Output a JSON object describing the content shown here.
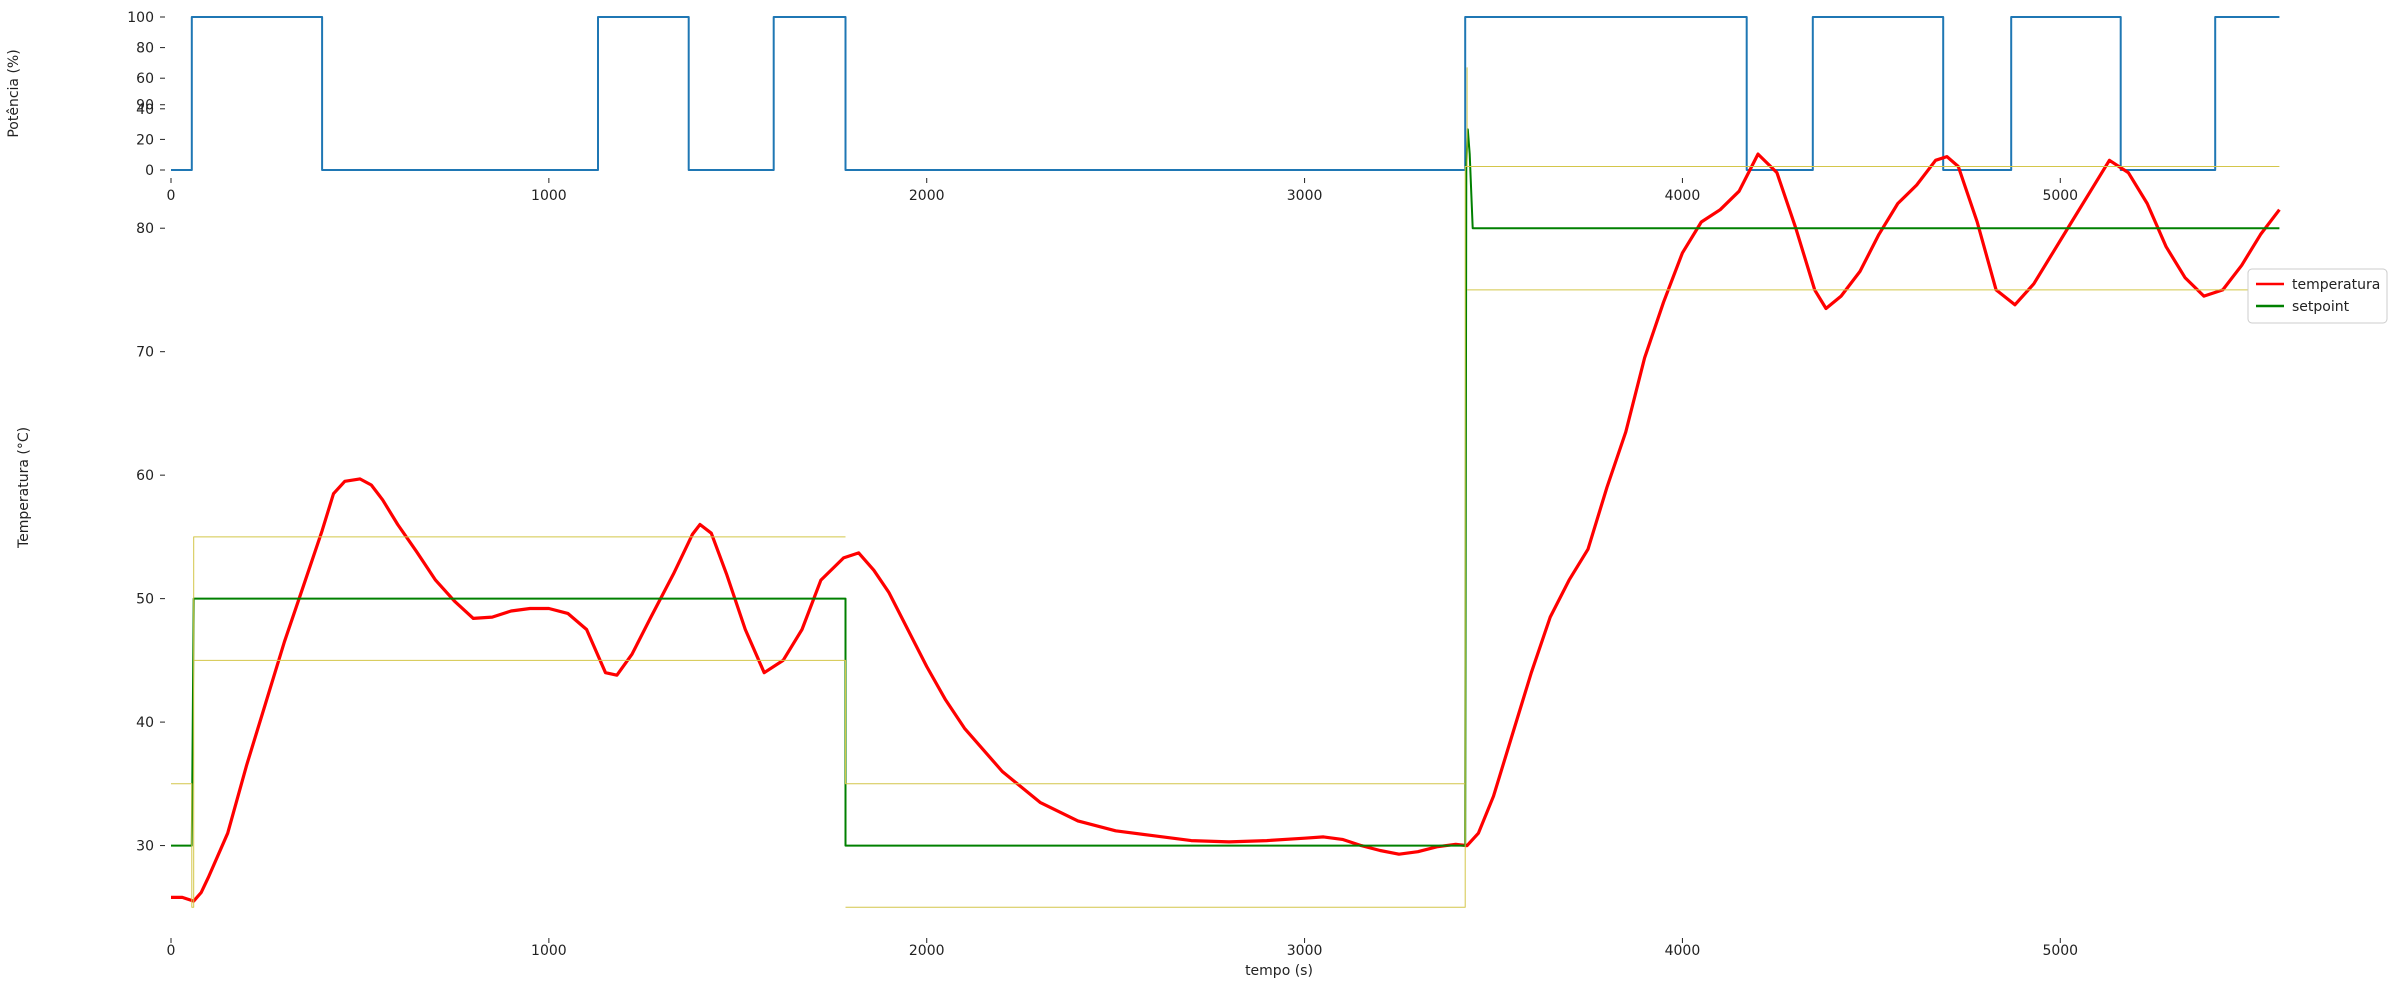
{
  "chart_data": [
    {
      "type": "line",
      "name": "power-chart",
      "ylabel": "Potência (%)",
      "xlabel": "",
      "xlim": [
        0,
        5600
      ],
      "ylim": [
        0,
        100
      ],
      "xticks": [
        "0",
        "1000",
        "2000",
        "3000",
        "4000",
        "5000"
      ],
      "xtick_values": [
        0,
        1000,
        2000,
        3000,
        4000,
        5000
      ],
      "yticks": [
        "0",
        "20",
        "40",
        "60",
        "80",
        "100"
      ],
      "ytick_values": [
        0,
        20,
        40,
        60,
        80,
        100
      ],
      "grid": false,
      "series": [
        {
          "color": "#1f77b4",
          "step": true,
          "x": [
            0,
            55,
            55,
            400,
            400,
            1130,
            1130,
            1370,
            1370,
            1595,
            1595,
            1785,
            1785,
            3425,
            3425,
            4170,
            4170,
            4345,
            4345,
            4690,
            4690,
            4870,
            4870,
            5160,
            5160,
            5410,
            5410,
            5580
          ],
          "y": [
            0,
            0,
            100,
            100,
            0,
            0,
            100,
            100,
            0,
            0,
            100,
            100,
            0,
            0,
            100,
            100,
            0,
            0,
            100,
            100,
            0,
            0,
            100,
            100,
            0,
            0,
            100,
            100
          ]
        }
      ]
    },
    {
      "type": "line",
      "name": "temperature-chart",
      "ylabel": "Temperatura (°C)",
      "xlabel": "tempo (s)",
      "xlim": [
        0,
        5600
      ],
      "ylim": [
        23,
        95
      ],
      "xticks": [
        "0",
        "1000",
        "2000",
        "3000",
        "4000",
        "5000"
      ],
      "xtick_values": [
        0,
        1000,
        2000,
        3000,
        4000,
        5000
      ],
      "yticks": [
        "30",
        "40",
        "50",
        "60",
        "70",
        "80",
        "90"
      ],
      "ytick_values": [
        30,
        40,
        50,
        60,
        70,
        80,
        90
      ],
      "grid": false,
      "legend_position": "top-right",
      "series": [
        {
          "name": "temperatura",
          "color": "#ff0000",
          "x": [
            0,
            30,
            60,
            80,
            100,
            150,
            200,
            250,
            300,
            350,
            400,
            430,
            460,
            500,
            530,
            560,
            600,
            650,
            700,
            750,
            800,
            850,
            900,
            950,
            1000,
            1050,
            1100,
            1150,
            1180,
            1220,
            1270,
            1330,
            1380,
            1400,
            1430,
            1470,
            1520,
            1570,
            1620,
            1670,
            1720,
            1780,
            1820,
            1860,
            1900,
            1950,
            2000,
            2050,
            2100,
            2200,
            2300,
            2400,
            2500,
            2600,
            2700,
            2800,
            2900,
            3000,
            3050,
            3100,
            3150,
            3200,
            3250,
            3300,
            3350,
            3400,
            3430,
            3460,
            3500,
            3550,
            3600,
            3650,
            3700,
            3750,
            3800,
            3850,
            3900,
            3950,
            4000,
            4050,
            4100,
            4150,
            4200,
            4250,
            4300,
            4350,
            4380,
            4420,
            4470,
            4520,
            4570,
            4620,
            4670,
            4700,
            4730,
            4780,
            4830,
            4880,
            4930,
            4980,
            5030,
            5080,
            5130,
            5180,
            5230,
            5280,
            5330,
            5380,
            5430,
            5480,
            5530,
            5580
          ],
          "y": [
            25.8,
            25.8,
            25.5,
            26.2,
            27.5,
            31.0,
            36.5,
            41.5,
            46.5,
            51.0,
            55.5,
            58.5,
            59.5,
            59.7,
            59.2,
            58.0,
            56.0,
            53.8,
            51.5,
            49.8,
            48.4,
            48.5,
            49.0,
            49.2,
            49.2,
            48.8,
            47.5,
            44.0,
            43.8,
            45.5,
            48.5,
            52.0,
            55.2,
            56.0,
            55.3,
            52.0,
            47.5,
            44.0,
            45.0,
            47.5,
            51.5,
            53.3,
            53.7,
            52.3,
            50.5,
            47.5,
            44.5,
            41.8,
            39.5,
            36.0,
            33.5,
            32.0,
            31.2,
            30.8,
            30.4,
            30.3,
            30.4,
            30.6,
            30.7,
            30.5,
            30.0,
            29.6,
            29.3,
            29.5,
            29.9,
            30.1,
            30.0,
            31.0,
            34.0,
            39.0,
            44.0,
            48.5,
            51.5,
            54.0,
            59.0,
            63.5,
            69.5,
            74.0,
            78.0,
            80.5,
            81.5,
            83.0,
            86.0,
            84.5,
            80.0,
            75.0,
            73.5,
            74.5,
            76.5,
            79.5,
            82.0,
            83.5,
            85.5,
            85.8,
            85.0,
            80.5,
            75.0,
            73.8,
            75.5,
            78.0,
            80.5,
            83.0,
            85.5,
            84.5,
            82.0,
            78.5,
            76.0,
            74.5,
            75.0,
            77.0,
            79.5,
            81.5
          ]
        },
        {
          "name": "setpoint",
          "color": "#008000",
          "x": [
            0,
            55,
            60,
            1785,
            1785,
            3425,
            3428,
            3432,
            3437,
            3445,
            3450,
            5580
          ],
          "y": [
            30,
            30,
            50,
            50,
            30,
            30,
            85,
            88,
            86,
            80,
            80,
            80
          ]
        },
        {
          "color": "#d4c64a",
          "dotted": true,
          "x": [
            0,
            55,
            55,
            60,
            60,
            1785,
            null,
            60,
            1785,
            1785,
            1785,
            3425,
            null,
            1785,
            3425,
            3425,
            3425,
            3430,
            3430,
            3430,
            5580,
            null,
            3430,
            5580
          ],
          "y": [
            35,
            35,
            25,
            25,
            55,
            55,
            null,
            45,
            45,
            35,
            35,
            35,
            null,
            25,
            25,
            75,
            85,
            85,
            93,
            85,
            85,
            null,
            75,
            75
          ]
        }
      ]
    }
  ]
}
